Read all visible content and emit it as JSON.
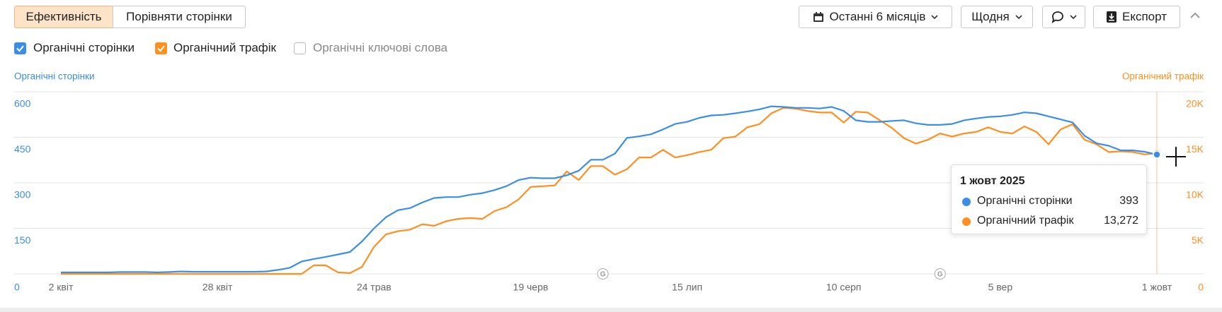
{
  "toolbar": {
    "tabs": [
      "Ефективність",
      "Порівняти сторінки"
    ],
    "active_tab": 0,
    "period": "Останні 6 місяців",
    "interval": "Щодня",
    "export": "Експорт"
  },
  "chart_data": {
    "type": "line",
    "ylabel": "Органічні сторінки",
    "y2label": "Органічний трафік",
    "inactive_series": [
      "Органічні ключові слова"
    ],
    "categories": [
      "2 квіт",
      null,
      null,
      null,
      null,
      null,
      null,
      null,
      null,
      null,
      null,
      null,
      null,
      "28 квіт",
      null,
      null,
      null,
      null,
      null,
      null,
      null,
      null,
      null,
      null,
      null,
      null,
      "24 трав",
      null,
      null,
      null,
      null,
      null,
      null,
      null,
      null,
      null,
      null,
      null,
      null,
      "19 черв",
      null,
      null,
      null,
      null,
      null,
      null,
      null,
      null,
      null,
      null,
      null,
      null,
      "15 лип",
      null,
      null,
      null,
      null,
      null,
      null,
      null,
      null,
      null,
      null,
      null,
      null,
      "10 серп",
      null,
      null,
      null,
      null,
      null,
      null,
      null,
      null,
      null,
      null,
      null,
      null,
      "5 вер",
      null,
      null,
      null,
      null,
      null,
      null,
      null,
      null,
      null,
      null,
      null,
      null,
      "1 жовт"
    ],
    "series": [
      {
        "name": "Органічні сторінки",
        "color": "#3a8ee6",
        "values": [
          5,
          5,
          5,
          5,
          5,
          6,
          6,
          6,
          5,
          6,
          8,
          7,
          7,
          7,
          7,
          7,
          7,
          8,
          13,
          20,
          41,
          49,
          56,
          64,
          72,
          107,
          150,
          187,
          210,
          217,
          235,
          250,
          253,
          253,
          261,
          266,
          276,
          289,
          309,
          317,
          315,
          315,
          325,
          340,
          376,
          376,
          396,
          448,
          453,
          460,
          476,
          494,
          501,
          514,
          522,
          524,
          529,
          535,
          542,
          552,
          550,
          547,
          547,
          545,
          550,
          537,
          506,
          501,
          501,
          504,
          506,
          496,
          491,
          491,
          494,
          506,
          512,
          517,
          519,
          524,
          532,
          529,
          519,
          509,
          499,
          455,
          430,
          422,
          407,
          407,
          402,
          393
        ]
      },
      {
        "name": "Органічний трафік",
        "color": "#ff8f1f",
        "axis": "y2",
        "values": [
          0,
          0,
          0,
          0,
          0,
          0,
          0,
          0,
          0,
          0,
          0,
          0,
          0,
          0,
          0,
          0,
          0,
          0,
          0,
          0,
          0,
          940,
          940,
          170,
          85,
          770,
          2980,
          4350,
          4690,
          4860,
          5450,
          5280,
          5790,
          6050,
          6130,
          6050,
          6900,
          7330,
          8180,
          9540,
          9630,
          9710,
          11250,
          10310,
          11840,
          11840,
          10900,
          11500,
          12780,
          12780,
          13630,
          12780,
          13040,
          13380,
          13630,
          14910,
          15080,
          16100,
          16440,
          17640,
          18230,
          18150,
          17890,
          17720,
          17720,
          16610,
          17810,
          17720,
          16870,
          16020,
          14910,
          14310,
          14740,
          15420,
          15080,
          15420,
          15590,
          16100,
          15590,
          15420,
          16190,
          15590,
          14230,
          15850,
          16440,
          14740,
          14230,
          13380,
          13460,
          13380,
          13120,
          13272
        ]
      }
    ],
    "ylim": [
      0,
      600
    ],
    "yticks": [
      0,
      150,
      300,
      450,
      600
    ],
    "y2lim": [
      0,
      20000
    ],
    "y2ticks": [
      0,
      {
        "value": 5000,
        "label": "5K"
      },
      {
        "value": 10000,
        "label": "10K"
      },
      {
        "value": 15000,
        "label": "15K"
      },
      {
        "value": 20000,
        "label": "20K"
      }
    ],
    "grid": true,
    "events": [
      {
        "at": 45,
        "label": "G"
      },
      {
        "at": 73,
        "label": "G"
      }
    ],
    "tooltip": {
      "title": "1 жовт 2025",
      "value_labels": [
        "393",
        "13,272"
      ]
    }
  }
}
